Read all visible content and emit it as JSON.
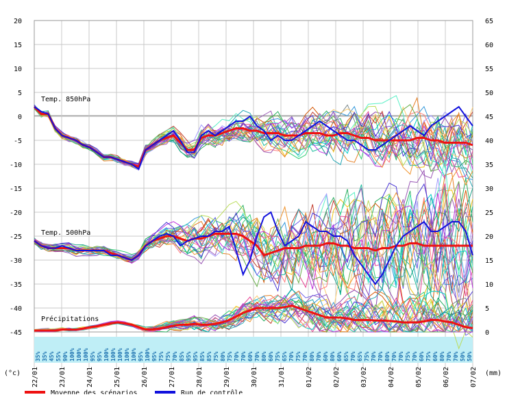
{
  "chart_data": {
    "type": "line",
    "left_axis": {
      "unit": "(°c)",
      "ticks": [
        "20",
        "15",
        "10",
        "5",
        "0",
        "-5",
        "-10",
        "-15",
        "-20",
        "-25",
        "-30",
        "-35",
        "-40",
        "-45"
      ],
      "ylim": [
        -45,
        20
      ]
    },
    "right_axis": {
      "unit": "(mm)",
      "ticks": [
        "65",
        "60",
        "55",
        "50",
        "45",
        "40",
        "35",
        "30",
        "25",
        "20",
        "15",
        "10",
        "5",
        "0"
      ],
      "ylim": [
        0,
        65
      ]
    },
    "x_tick_labels": [
      "22/01",
      "23/01",
      "24/01",
      "25/01",
      "26/01",
      "27/01",
      "28/01",
      "29/01",
      "30/01",
      "31/01",
      "01/02",
      "02/02",
      "03/02",
      "04/02",
      "05/02",
      "06/02",
      "07/02"
    ],
    "panel_labels": {
      "t850": "Temp. 850hPa",
      "t500": "Temp. 500hPa",
      "precip": "Précipitations"
    },
    "legend": {
      "mean": "Moyenne des scénarios",
      "control": "Run de contrôle"
    },
    "colors": {
      "mean": "#ee1111",
      "control": "#1111dd",
      "black_run": "#000000",
      "prob_band": "#bfeef6",
      "prob_text": "#1a6fae"
    },
    "probabilities": [
      "35%",
      "35%",
      "45%",
      "55%",
      "90%",
      "100%",
      "100%",
      "100%",
      "95%",
      "95%",
      "100%",
      "100%",
      "100%",
      "100%",
      "100%",
      "95%",
      "100%",
      "95%",
      "75%",
      "75%",
      "70%",
      "85%",
      "95%",
      "95%",
      "85%",
      "85%",
      "75%",
      "80%",
      "75%",
      "70%",
      "70%",
      "60%",
      "70%",
      "80%",
      "60%",
      "75%",
      "65%",
      "70%",
      "75%",
      "70%",
      "80%",
      "70%",
      "60%",
      "80%",
      "60%",
      "65%",
      "70%",
      "65%",
      "75%",
      "70%",
      "70%",
      "80%",
      "70%",
      "70%",
      "75%",
      "70%",
      "60%",
      "75%",
      "60%",
      "80%",
      "70%",
      "70%",
      "50%",
      "50%"
    ],
    "series": [
      {
        "name": "Moyenne des scénarios",
        "panel": "t850",
        "values": [
          2,
          0.5,
          0.5,
          -2.5,
          -4,
          -4.5,
          -5,
          -6,
          -6.5,
          -7.5,
          -8.5,
          -8.5,
          -9,
          -9.5,
          -10,
          -10.5,
          -7,
          -6,
          -5,
          -4.5,
          -4,
          -5.5,
          -7,
          -7,
          -4.5,
          -4,
          -4,
          -3.5,
          -3,
          -2.5,
          -2.5,
          -3,
          -3,
          -3.5,
          -3.5,
          -3.5,
          -4,
          -4,
          -4,
          -3.5,
          -3.5,
          -3.5,
          -4,
          -4,
          -3.5,
          -3.5,
          -4,
          -4.5,
          -4.5,
          -5,
          -5,
          -5,
          -5,
          -5,
          -5,
          -4.5,
          -4.5,
          -5,
          -5,
          -5.5,
          -5.5,
          -5.5,
          -5.5,
          -6
        ]
      },
      {
        "name": "Run de contrôle",
        "panel": "t850",
        "values": [
          2,
          1,
          0.5,
          -2.5,
          -4,
          -4.5,
          -5,
          -6,
          -6.5,
          -7.5,
          -8.5,
          -8.5,
          -9,
          -9.5,
          -10,
          -11,
          -7,
          -6,
          -5,
          -4,
          -3,
          -5,
          -7.5,
          -7.5,
          -4,
          -3,
          -4,
          -3,
          -2,
          -1,
          -1,
          0,
          -2,
          -3,
          -5,
          -4,
          -5,
          -5,
          -4,
          -3,
          -2,
          -1,
          -2,
          -3,
          -4,
          -5,
          -5,
          -6,
          -7,
          -7,
          -6,
          -5,
          -4,
          -3,
          -2,
          -3,
          -4,
          -2,
          -1,
          0,
          1,
          2,
          0,
          -2
        ]
      },
      {
        "name": "Moyenne des scénarios",
        "panel": "t500",
        "values": [
          -26,
          -27,
          -27.5,
          -27.5,
          -27.5,
          -27.5,
          -28,
          -28,
          -28,
          -28,
          -28,
          -28.5,
          -29,
          -29.5,
          -30,
          -29,
          -27,
          -26,
          -25.5,
          -25,
          -25,
          -25.5,
          -26,
          -25.5,
          -25.5,
          -25,
          -24.5,
          -24.5,
          -24.5,
          -24.5,
          -25,
          -26,
          -27,
          -29,
          -28.5,
          -28,
          -27.5,
          -27.5,
          -27.5,
          -27,
          -27,
          -27,
          -26.5,
          -26.5,
          -27,
          -27,
          -27.5,
          -27.5,
          -27.5,
          -28,
          -27.5,
          -27.5,
          -27,
          -27,
          -26.5,
          -26.5,
          -27,
          -27,
          -27,
          -27,
          -27,
          -27,
          -27,
          -27
        ]
      },
      {
        "name": "Run de contrôle",
        "panel": "t500",
        "values": [
          -26,
          -27,
          -27.5,
          -27.5,
          -27,
          -27.5,
          -28,
          -28,
          -28,
          -28,
          -28,
          -29,
          -29,
          -29.5,
          -30,
          -29,
          -27,
          -26,
          -25,
          -24.5,
          -25,
          -27,
          -26,
          -25.5,
          -25,
          -25,
          -24,
          -24,
          -23,
          -28,
          -33,
          -30,
          -25,
          -21,
          -20,
          -24,
          -27,
          -26,
          -25,
          -22,
          -23,
          -24,
          -24,
          -25,
          -25,
          -26,
          -29,
          -31,
          -33,
          -35,
          -33,
          -30,
          -27,
          -25,
          -24,
          -23,
          -22,
          -24,
          -24,
          -23,
          -22,
          -22,
          -24,
          -29
        ]
      },
      {
        "name": "Moyenne des scénarios",
        "panel": "precip",
        "values": [
          0.3,
          0.3,
          0.3,
          0.3,
          0.5,
          0.5,
          0.5,
          0.7,
          1,
          1.2,
          1.5,
          1.8,
          2,
          1.8,
          1.5,
          1,
          0.5,
          0.5,
          0.7,
          1,
          1.3,
          1.5,
          1.5,
          1.7,
          1.5,
          1.5,
          1.7,
          2,
          2.5,
          3.2,
          4,
          4.5,
          5,
          5,
          5,
          5,
          5.2,
          5.5,
          5,
          4.5,
          4,
          3.5,
          3,
          3,
          3,
          2.8,
          2.5,
          2.5,
          2.5,
          2.4,
          2.4,
          2.3,
          2.2,
          2,
          2,
          2,
          2.2,
          2.5,
          2.5,
          2.2,
          2,
          1.5,
          1,
          0.8
        ]
      }
    ]
  }
}
